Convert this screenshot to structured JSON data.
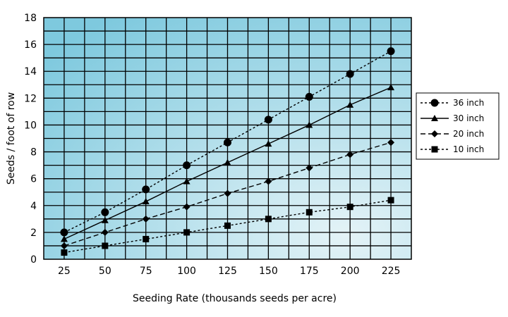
{
  "chart_data": {
    "type": "line",
    "title": "",
    "xlabel": "Seeding Rate (thousands seeds per acre)",
    "ylabel": "Seeds / foot of row",
    "xlim": [
      12.5,
      237.5
    ],
    "ylim": [
      0,
      18
    ],
    "x": [
      25,
      50,
      75,
      100,
      125,
      150,
      175,
      200,
      225
    ],
    "x_ticks": [
      25,
      50,
      75,
      100,
      125,
      150,
      175,
      200,
      225
    ],
    "y_ticks": [
      0,
      2,
      4,
      6,
      8,
      10,
      12,
      14,
      16,
      18
    ],
    "grid": true,
    "legend_position": "right",
    "series": [
      {
        "name": "36 inch",
        "marker": "circle",
        "line": "dotted",
        "values": [
          2.0,
          3.5,
          5.2,
          7.0,
          8.7,
          10.4,
          12.1,
          13.8,
          15.5
        ]
      },
      {
        "name": "30 inch",
        "marker": "triangle",
        "line": "solid",
        "values": [
          1.5,
          2.9,
          4.3,
          5.8,
          7.2,
          8.6,
          10.0,
          11.5,
          12.8
        ]
      },
      {
        "name": "20 inch",
        "marker": "diamond",
        "line": "dashed",
        "values": [
          1.0,
          2.0,
          3.0,
          3.9,
          4.9,
          5.8,
          6.8,
          7.8,
          8.7
        ]
      },
      {
        "name": "10 inch",
        "marker": "square",
        "line": "dotted",
        "values": [
          0.5,
          1.0,
          1.5,
          2.0,
          2.5,
          3.0,
          3.5,
          3.9,
          4.4
        ]
      }
    ],
    "colors": {
      "plot_bg_light": "#e4f3f7",
      "plot_bg_dark": "#7ec9de",
      "grid": "#000000",
      "series": "#000000"
    }
  }
}
